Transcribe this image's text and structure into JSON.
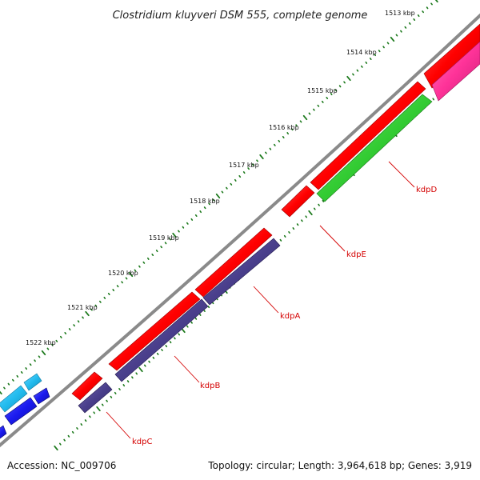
{
  "title": "Clostridium kluyveri DSM 555, complete genome",
  "footer": {
    "accession": "Accession: NC_009706",
    "summary": "Topology: circular; Length: 3,964,618 bp; Genes: 3,919"
  },
  "colors": {
    "backbone": "#8a8a8a",
    "tick": "#1d7a1d",
    "label": "#d40000",
    "forward_gene": "#ff0000",
    "kdp_reverse": "#4a3f8c",
    "kdpD_reverse": "#33cc33",
    "upstream_gene": "#ff3399",
    "cyan_gene": "#22bbee",
    "blue_gene": "#1a1aee"
  },
  "ticks": [
    {
      "label": "1513 kbp"
    },
    {
      "label": "1514 kbp"
    },
    {
      "label": "1515 kbp"
    },
    {
      "label": "1516 kbp"
    },
    {
      "label": "1517 kbp"
    },
    {
      "label": "1518 kbp"
    },
    {
      "label": "1519 kbp"
    },
    {
      "label": "1520 kbp"
    },
    {
      "label": "1521 kbp"
    },
    {
      "label": "1522 kbp"
    }
  ],
  "genes": [
    {
      "name": "kdpD"
    },
    {
      "name": "kdpE"
    },
    {
      "name": "kdpA"
    },
    {
      "name": "kdpB"
    },
    {
      "name": "kdpC"
    }
  ]
}
